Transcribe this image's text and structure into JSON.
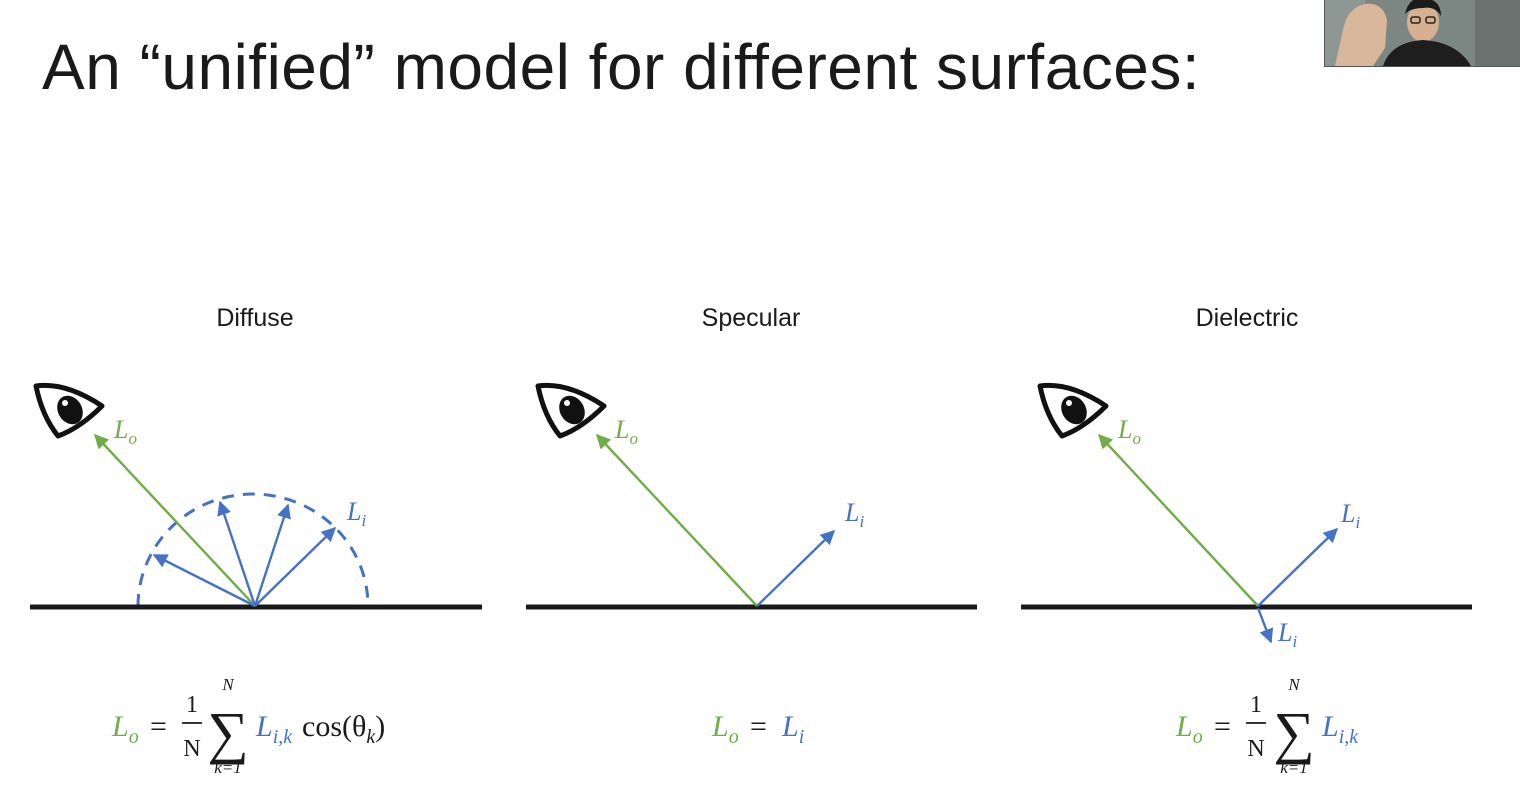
{
  "slide": {
    "title": "An “unified” model for different surfaces:"
  },
  "panels": [
    {
      "label": "Diffuse",
      "outgoing_label": "L",
      "outgoing_sub": "o",
      "incoming_label": "L",
      "incoming_sub": "i",
      "formula": {
        "lhs": "L",
        "lhs_sub": "o",
        "equals": "=",
        "frac_num": "1",
        "frac_den": "N",
        "sum_upper": "N",
        "sum_lower": "k=1",
        "term": "L",
        "term_sub": "i,k",
        "tail": "cos(θ",
        "tail_sub": "k",
        "tail_close": ")"
      }
    },
    {
      "label": "Specular",
      "outgoing_label": "L",
      "outgoing_sub": "o",
      "incoming_label": "L",
      "incoming_sub": "i",
      "formula": {
        "lhs": "L",
        "lhs_sub": "o",
        "equals": "=",
        "rhs": "L",
        "rhs_sub": "i"
      }
    },
    {
      "label": "Dielectric",
      "outgoing_label": "L",
      "outgoing_sub": "o",
      "incoming_label": "L",
      "incoming_sub": "i",
      "refracted_label": "L",
      "refracted_sub": "i",
      "formula": {
        "lhs": "L",
        "lhs_sub": "o",
        "equals": "=",
        "frac_num": "1",
        "frac_den": "N",
        "sum_upper": "N",
        "sum_lower": "k=1",
        "term": "L",
        "term_sub": "i,k"
      }
    }
  ],
  "colors": {
    "outgoing": "#70ad47",
    "incoming": "#4472c4",
    "surface": "#1a1a1a"
  },
  "icons": {
    "eye": "eye-icon",
    "sum": "summation-sign"
  }
}
